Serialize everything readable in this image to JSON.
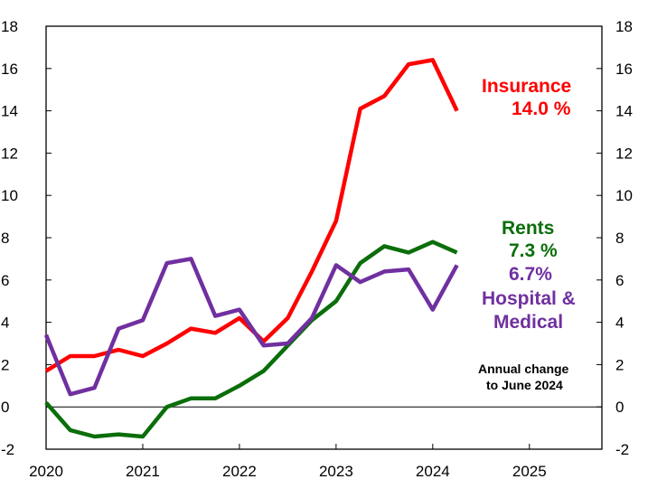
{
  "chart_data": {
    "type": "line",
    "x_ticks": [
      "2020",
      "2021",
      "2022",
      "2023",
      "2024",
      "2025"
    ],
    "y_ticks": [
      "-2",
      "0",
      "2",
      "4",
      "6",
      "8",
      "10",
      "12",
      "14",
      "16",
      "18"
    ],
    "ylim": [
      -2,
      18
    ],
    "xlim": [
      2020.0,
      2025.75
    ],
    "grid": false,
    "series": [
      {
        "name": "Insurance",
        "color": "#ff0000",
        "x": [
          2020.0,
          2020.25,
          2020.5,
          2020.75,
          2021.0,
          2021.25,
          2021.5,
          2021.75,
          2022.0,
          2022.25,
          2022.5,
          2022.75,
          2023.0,
          2023.25,
          2023.5,
          2023.75,
          2024.0,
          2024.25
        ],
        "values": [
          1.7,
          2.4,
          2.4,
          2.7,
          2.4,
          3.0,
          3.7,
          3.5,
          4.2,
          3.1,
          4.2,
          6.4,
          8.8,
          14.1,
          14.7,
          16.2,
          16.4,
          14.0
        ]
      },
      {
        "name": "Rents",
        "color": "#0a6e0a",
        "x": [
          2020.0,
          2020.25,
          2020.5,
          2020.75,
          2021.0,
          2021.25,
          2021.5,
          2021.75,
          2022.0,
          2022.25,
          2022.5,
          2022.75,
          2023.0,
          2023.25,
          2023.5,
          2023.75,
          2024.0,
          2024.25
        ],
        "values": [
          0.2,
          -1.1,
          -1.4,
          -1.3,
          -1.4,
          0.0,
          0.4,
          0.4,
          1.0,
          1.7,
          2.9,
          4.1,
          5.0,
          6.8,
          7.6,
          7.3,
          7.8,
          7.3
        ]
      },
      {
        "name": "Hospital & Medical",
        "color": "#7030a0",
        "x": [
          2020.0,
          2020.25,
          2020.5,
          2020.75,
          2021.0,
          2021.25,
          2021.5,
          2021.75,
          2022.0,
          2022.25,
          2022.5,
          2022.75,
          2023.0,
          2023.25,
          2023.5,
          2023.75,
          2024.0,
          2024.25
        ],
        "values": [
          3.4,
          0.6,
          0.9,
          3.7,
          4.1,
          6.8,
          7.0,
          4.3,
          4.6,
          2.9,
          3.0,
          4.2,
          6.7,
          5.9,
          6.4,
          6.5,
          4.6,
          6.7
        ]
      }
    ],
    "labels": {
      "insurance_name": "Insurance",
      "insurance_value": "14.0 %",
      "rents_name": "Rents",
      "rents_value": "7.3 %",
      "hospital_value": "6.7%",
      "hospital_name_line1": "Hospital &",
      "hospital_name_line2": "Medical",
      "note_line1": "Annual  change",
      "note_line2": "to June  2024"
    }
  }
}
